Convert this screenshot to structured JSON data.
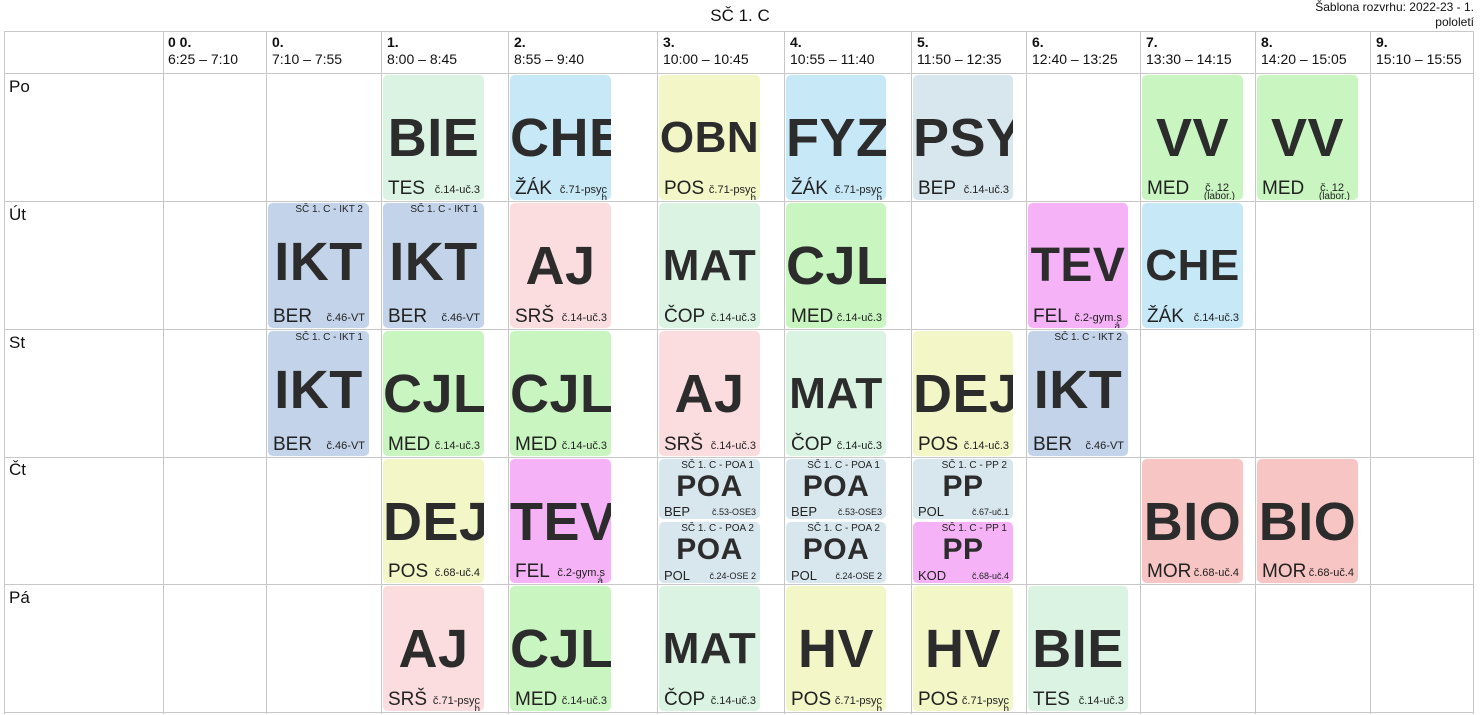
{
  "header": {
    "title": "SČ 1. C",
    "template_label": "Šablona rozvrhu: 2022-23 - 1.",
    "template_label2": "pololetí"
  },
  "periods": [
    {
      "num": "0 0.",
      "time": "6:25 – 7:10"
    },
    {
      "num": "0.",
      "time": "7:10 – 7:55"
    },
    {
      "num": "1.",
      "time": "8:00 – 8:45"
    },
    {
      "num": "2.",
      "time": "8:55 – 9:40"
    },
    {
      "num": "3.",
      "time": "10:00 – 10:45"
    },
    {
      "num": "4.",
      "time": "10:55 – 11:40"
    },
    {
      "num": "5.",
      "time": "11:50 – 12:35"
    },
    {
      "num": "6.",
      "time": "12:40 – 13:25"
    },
    {
      "num": "7.",
      "time": "13:30 – 14:15"
    },
    {
      "num": "8.",
      "time": "14:20 – 15:05"
    },
    {
      "num": "9.",
      "time": "15:10 – 15:55"
    }
  ],
  "days": [
    "Po",
    "Út",
    "St",
    "Čt",
    "Pá"
  ],
  "lessons": {
    "po_1": {
      "subject": "BIE",
      "teacher": "TES",
      "room": "č.14-uč.3"
    },
    "po_2": {
      "subject": "CHE",
      "teacher": "ŽÁK",
      "room": "č.71-psyc",
      "room2": "h"
    },
    "po_3": {
      "subject": "OBN",
      "teacher": "POS",
      "room": "č.71-psyc",
      "room2": "h"
    },
    "po_4": {
      "subject": "FYZ",
      "teacher": "ŽÁK",
      "room": "č.71-psyc",
      "room2": "h"
    },
    "po_5": {
      "subject": "PSY",
      "teacher": "BEP",
      "room": "č.14-uč.3"
    },
    "po_7": {
      "subject": "VV",
      "teacher": "MED",
      "room": "č. 12",
      "room2": "(labor.)"
    },
    "po_8": {
      "subject": "VV",
      "teacher": "MED",
      "room": "č. 12",
      "room2": "(labor.)"
    },
    "ut_0": {
      "subject": "IKT",
      "teacher": "BER",
      "room": "č.46-VT",
      "group": "SČ 1. C - IKT 2"
    },
    "ut_1": {
      "subject": "IKT",
      "teacher": "BER",
      "room": "č.46-VT",
      "group": "SČ 1. C - IKT 1"
    },
    "ut_2": {
      "subject": "AJ",
      "teacher": "SRŠ",
      "room": "č.14-uč.3"
    },
    "ut_3": {
      "subject": "MAT",
      "teacher": "ČOP",
      "room": "č.14-uč.3"
    },
    "ut_4": {
      "subject": "CJL",
      "teacher": "MED",
      "room": "č.14-uč.3"
    },
    "ut_6": {
      "subject": "TEV",
      "teacher": "FEL",
      "room": "č.2-gym.s",
      "room2": "á"
    },
    "ut_7": {
      "subject": "CHE",
      "teacher": "ŽÁK",
      "room": "č.14-uč.3"
    },
    "st_0": {
      "subject": "IKT",
      "teacher": "BER",
      "room": "č.46-VT",
      "group": "SČ 1. C - IKT 1"
    },
    "st_1": {
      "subject": "CJL",
      "teacher": "MED",
      "room": "č.14-uč.3"
    },
    "st_2": {
      "subject": "CJL",
      "teacher": "MED",
      "room": "č.14-uč.3"
    },
    "st_3": {
      "subject": "AJ",
      "teacher": "SRŠ",
      "room": "č.14-uč.3"
    },
    "st_4": {
      "subject": "MAT",
      "teacher": "ČOP",
      "room": "č.14-uč.3"
    },
    "st_5": {
      "subject": "DEJ",
      "teacher": "POS",
      "room": "č.14-uč.3"
    },
    "st_6": {
      "subject": "IKT",
      "teacher": "BER",
      "room": "č.46-VT",
      "group": "SČ 1. C - IKT 2"
    },
    "ct_1": {
      "subject": "DEJ",
      "teacher": "POS",
      "room": "č.68-uč.4"
    },
    "ct_2": {
      "subject": "TEV",
      "teacher": "FEL",
      "room": "č.2-gym.s",
      "room2": "á"
    },
    "ct_3a": {
      "subject": "POA",
      "teacher": "BEP",
      "room": "č.53-OSE3",
      "group": "SČ 1. C - POA 1"
    },
    "ct_3b": {
      "subject": "POA",
      "teacher": "POL",
      "room": "č.24-OSE 2",
      "group": "SČ 1. C - POA 2"
    },
    "ct_4a": {
      "subject": "POA",
      "teacher": "BEP",
      "room": "č.53-OSE3",
      "group": "SČ 1. C - POA 1"
    },
    "ct_4b": {
      "subject": "POA",
      "teacher": "POL",
      "room": "č.24-OSE 2",
      "group": "SČ 1. C - POA 2"
    },
    "ct_5a": {
      "subject": "PP",
      "teacher": "POL",
      "room": "č.67-uč.1",
      "group": "SČ 1. C - PP 2"
    },
    "ct_5b": {
      "subject": "PP",
      "teacher": "KOD",
      "room": "č.68-uč.4",
      "group": "SČ 1. C - PP 1"
    },
    "ct_7": {
      "subject": "BIO",
      "teacher": "MOR",
      "room": "č.68-uč.4"
    },
    "ct_8": {
      "subject": "BIO",
      "teacher": "MOR",
      "room": "č.68-uč.4"
    },
    "pa_1": {
      "subject": "AJ",
      "teacher": "SRŠ",
      "room": "č.71-psyc",
      "room2": "h"
    },
    "pa_2": {
      "subject": "CJL",
      "teacher": "MED",
      "room": "č.14-uč.3"
    },
    "pa_3": {
      "subject": "MAT",
      "teacher": "ČOP",
      "room": "č.14-uč.3"
    },
    "pa_4": {
      "subject": "HV",
      "teacher": "POS",
      "room": "č.71-psyc",
      "room2": "h"
    },
    "pa_5": {
      "subject": "HV",
      "teacher": "POS",
      "room": "č.71-psyc",
      "room2": "h"
    },
    "pa_6": {
      "subject": "BIE",
      "teacher": "TES",
      "room": "č.14-uč.3"
    }
  }
}
